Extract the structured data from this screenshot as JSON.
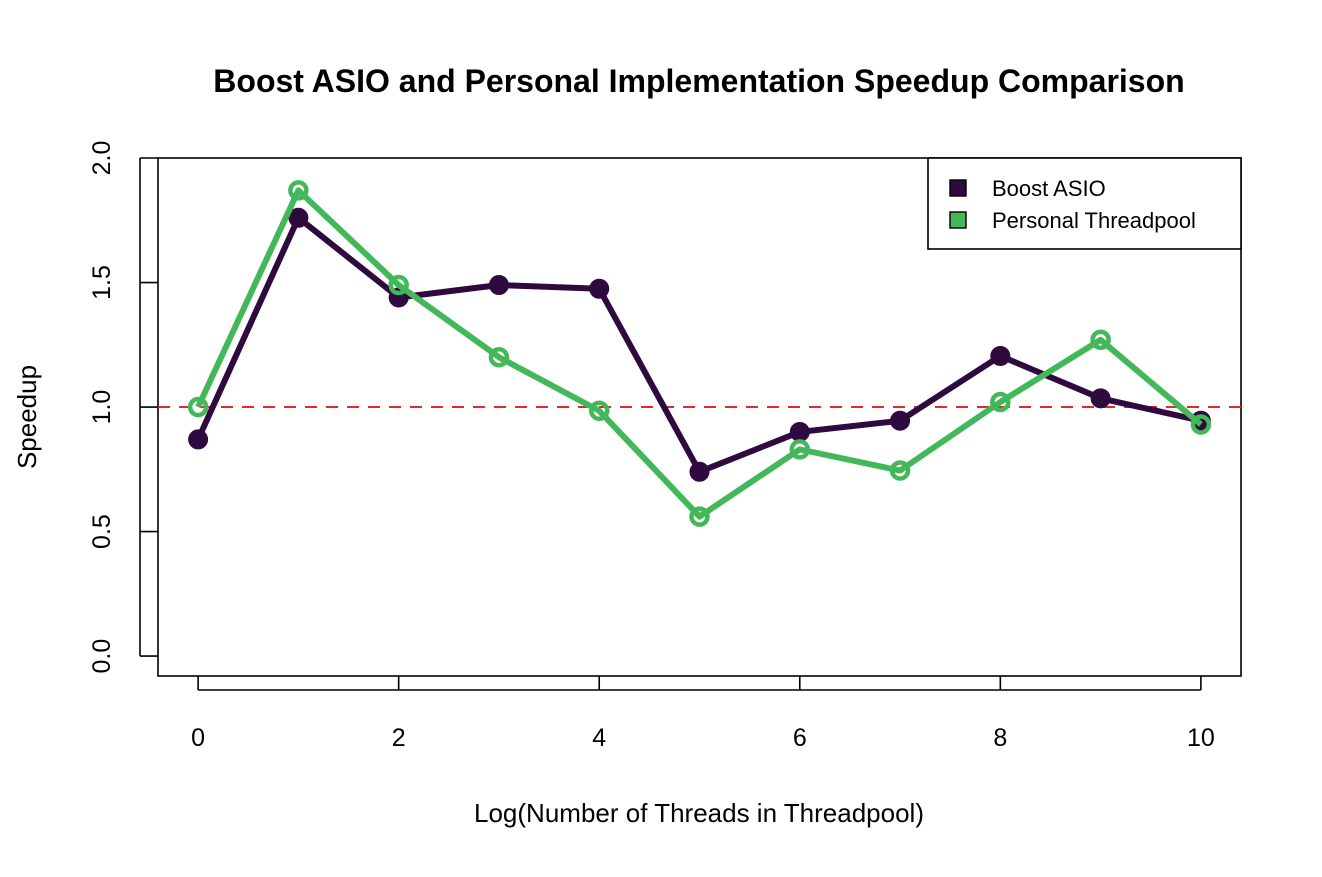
{
  "chart_data": {
    "type": "line",
    "title": "Boost ASIO and Personal Implementation Speedup Comparison",
    "xlabel": "Log(Number of Threads in Threadpool)",
    "ylabel": "Speedup",
    "x": [
      0,
      1,
      2,
      3,
      4,
      5,
      6,
      7,
      8,
      9,
      10
    ],
    "xlim": [
      -0.4,
      10.4
    ],
    "ylim": [
      -0.08,
      2.0
    ],
    "x_ticks": [
      "0",
      "2",
      "4",
      "6",
      "8",
      "10"
    ],
    "y_ticks": [
      "0.0",
      "0.5",
      "1.0",
      "1.5",
      "2.0"
    ],
    "grid": false,
    "legend_position": "top-right",
    "reference_line": {
      "y": 1.0,
      "style": "dashed",
      "color": "#e8262a"
    },
    "series": [
      {
        "name": "Boost ASIO",
        "color": "#2e0a3e",
        "marker": "filled-circle",
        "values": [
          0.87,
          1.76,
          1.44,
          1.49,
          1.475,
          0.74,
          0.9,
          0.945,
          1.205,
          1.035,
          0.945
        ]
      },
      {
        "name": "Personal Threadpool",
        "color": "#43b85a",
        "marker": "open-circle",
        "values": [
          1.0,
          1.87,
          1.49,
          1.2,
          0.985,
          0.56,
          0.83,
          0.745,
          1.02,
          1.27,
          0.93
        ]
      }
    ]
  }
}
